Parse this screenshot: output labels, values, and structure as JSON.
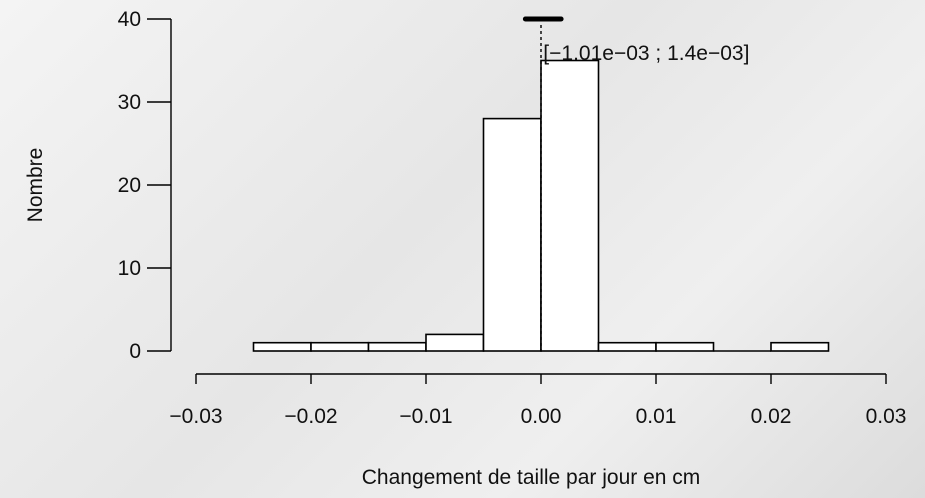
{
  "chart_data": {
    "type": "bar",
    "title": "",
    "xlabel": "Changement de taille par jour en cm",
    "ylabel": "Nombre",
    "xlim": [
      -0.03,
      0.03
    ],
    "ylim": [
      0,
      40
    ],
    "x_ticks": [
      -0.03,
      -0.02,
      -0.01,
      0.0,
      0.01,
      0.02,
      0.03
    ],
    "x_tick_labels": [
      "−0.03",
      "−0.02",
      "−0.01",
      "0.00",
      "0.01",
      "0.02",
      "0.03"
    ],
    "y_ticks": [
      0,
      10,
      20,
      30,
      40
    ],
    "y_tick_labels": [
      "0",
      "10",
      "20",
      "30",
      "40"
    ],
    "bins": [
      {
        "start": -0.025,
        "end": -0.02,
        "count": 1
      },
      {
        "start": -0.02,
        "end": -0.015,
        "count": 1
      },
      {
        "start": -0.015,
        "end": -0.01,
        "count": 1
      },
      {
        "start": -0.01,
        "end": -0.005,
        "count": 2
      },
      {
        "start": -0.005,
        "end": 0.0,
        "count": 28
      },
      {
        "start": 0.0,
        "end": 0.005,
        "count": 35
      },
      {
        "start": 0.005,
        "end": 0.01,
        "count": 1
      },
      {
        "start": 0.01,
        "end": 0.015,
        "count": 1
      },
      {
        "start": 0.015,
        "end": 0.02,
        "count": 0
      },
      {
        "start": 0.02,
        "end": 0.025,
        "count": 1
      }
    ],
    "reference_line": {
      "x": 0.0,
      "style": "dotted"
    },
    "interval": {
      "low": -0.00101,
      "high": 0.0014,
      "y": 40
    },
    "interval_label": "[−1.01e−03 ; 1.4e−03]",
    "grid": false,
    "colors": {
      "bar_fill": "#ffffff",
      "bar_stroke": "#000000",
      "axis": "#000000"
    }
  }
}
